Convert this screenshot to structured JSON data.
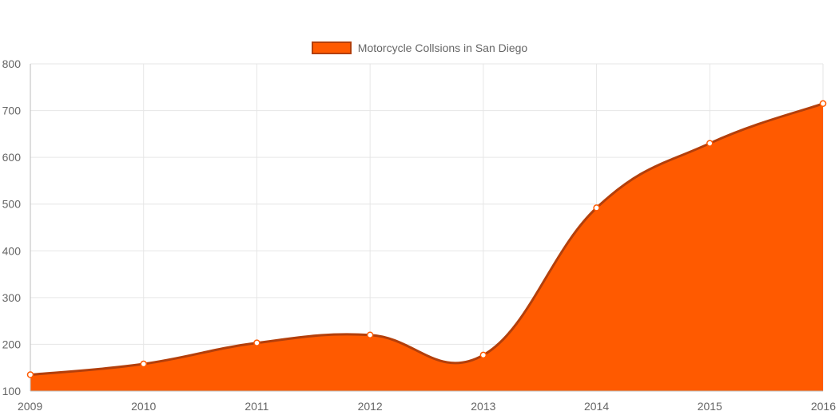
{
  "chart_data": {
    "type": "area",
    "x": [
      "2009",
      "2010",
      "2011",
      "2012",
      "2013",
      "2014",
      "2015",
      "2016"
    ],
    "series": [
      {
        "name": "Motorcycle Collsions in San Diego",
        "values": [
          135,
          158,
          203,
          220,
          177,
          492,
          630,
          715
        ],
        "fill_color": "#ff5a00",
        "line_color": "#b33f0b"
      }
    ],
    "ylim": [
      100,
      800
    ],
    "yticks": [
      100,
      200,
      300,
      400,
      500,
      600,
      700,
      800
    ],
    "grid": true,
    "legend": "top-center",
    "title": "",
    "xlabel": "",
    "ylabel": ""
  }
}
